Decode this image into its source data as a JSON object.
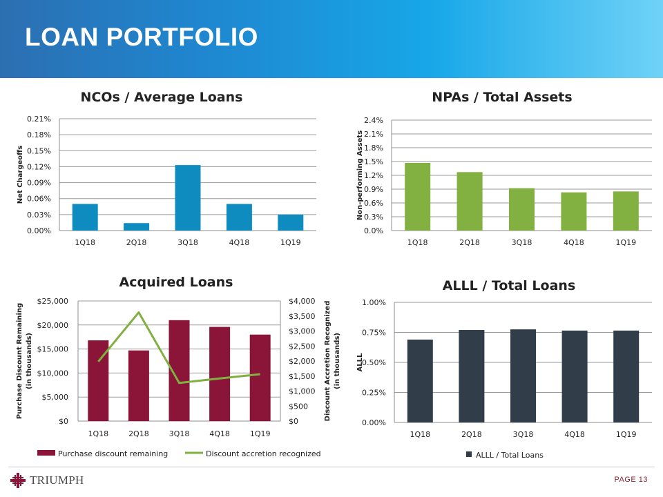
{
  "title": "LOAN PORTFOLIO",
  "page_label": "PAGE 13",
  "logo_text": "TRIUMPH",
  "colors": {
    "blue_bar": "#0f8cbf",
    "green_bar": "#82b041",
    "maroon_bar": "#8a1538",
    "dark_bar": "#313d48",
    "line_green": "#7fb040"
  },
  "chart_data": [
    {
      "id": "ncos",
      "type": "bar",
      "title": "NCOs / Average Loans",
      "ylabel": "Net Chargeoffs",
      "categories": [
        "1Q18",
        "2Q18",
        "3Q18",
        "4Q18",
        "1Q19"
      ],
      "values": [
        0.05,
        0.014,
        0.123,
        0.05,
        0.03
      ],
      "ylim": [
        0,
        0.21
      ],
      "yticks": [
        0,
        0.03,
        0.06,
        0.09,
        0.12,
        0.15,
        0.18,
        0.21
      ],
      "ytick_labels": [
        "0.00%",
        "0.03%",
        "0.06%",
        "0.09%",
        "0.12%",
        "0.15%",
        "0.18%",
        "0.21%"
      ],
      "color": "#0f8cbf",
      "grid": true
    },
    {
      "id": "npas",
      "type": "bar",
      "title": "NPAs / Total Assets",
      "ylabel": "Non-performing Assets",
      "categories": [
        "1Q18",
        "2Q18",
        "3Q18",
        "4Q18",
        "1Q19"
      ],
      "values": [
        1.47,
        1.27,
        0.92,
        0.83,
        0.85
      ],
      "ylim": [
        0,
        2.4
      ],
      "yticks": [
        0,
        0.3,
        0.6,
        0.9,
        1.2,
        1.5,
        1.8,
        2.1,
        2.4
      ],
      "ytick_labels": [
        "0.0%",
        "0.3%",
        "0.6%",
        "0.9%",
        "1.2%",
        "1.5%",
        "1.8%",
        "2.1%",
        "2.4%"
      ],
      "color": "#82b041",
      "grid": true
    },
    {
      "id": "acquired",
      "type": "bar+line",
      "title": "Acquired Loans",
      "categories": [
        "1Q18",
        "2Q18",
        "3Q18",
        "4Q18",
        "1Q19"
      ],
      "bar_series": {
        "name": "Purchase discount remaining",
        "values": [
          16800,
          14700,
          21000,
          19600,
          18000
        ],
        "color": "#8a1538"
      },
      "line_series": {
        "name": "Discount accretion recognized",
        "values": [
          1980,
          3620,
          1270,
          1420,
          1560
        ],
        "color": "#7fb040"
      },
      "ylabel_left": [
        "Purchase Discount Remaining",
        "(in thousands)"
      ],
      "ylabel_right": [
        "Discount Accretion Recognized",
        "(in thousands)"
      ],
      "ylim_left": [
        0,
        25000
      ],
      "yticks_left": [
        0,
        5000,
        10000,
        15000,
        20000,
        25000
      ],
      "ytick_labels_left": [
        "$0",
        "$5,000",
        "$10,000",
        "$15,000",
        "$20,000",
        "$25,000"
      ],
      "ylim_right": [
        0,
        4000
      ],
      "yticks_right": [
        0,
        500,
        1000,
        1500,
        2000,
        2500,
        3000,
        3500,
        4000
      ],
      "ytick_labels_right": [
        "$0",
        "$500",
        "$1,000",
        "$1,500",
        "$2,000",
        "$2,500",
        "$3,000",
        "$3,500",
        "$4,000"
      ],
      "grid": true,
      "legend": "bottom"
    },
    {
      "id": "alll",
      "type": "bar",
      "title": "ALLL / Total Loans",
      "ylabel": "ALLL",
      "categories": [
        "1Q18",
        "2Q18",
        "3Q18",
        "4Q18",
        "1Q19"
      ],
      "values": [
        0.69,
        0.77,
        0.775,
        0.765,
        0.765
      ],
      "ylim": [
        0,
        1.0
      ],
      "yticks": [
        0,
        0.25,
        0.5,
        0.75,
        1.0
      ],
      "ytick_labels": [
        "0.00%",
        "0.25%",
        "0.50%",
        "0.75%",
        "1.00%"
      ],
      "color": "#313d48",
      "legend_label": "ALLL / Total Loans",
      "grid": true,
      "legend": "bottom"
    }
  ]
}
